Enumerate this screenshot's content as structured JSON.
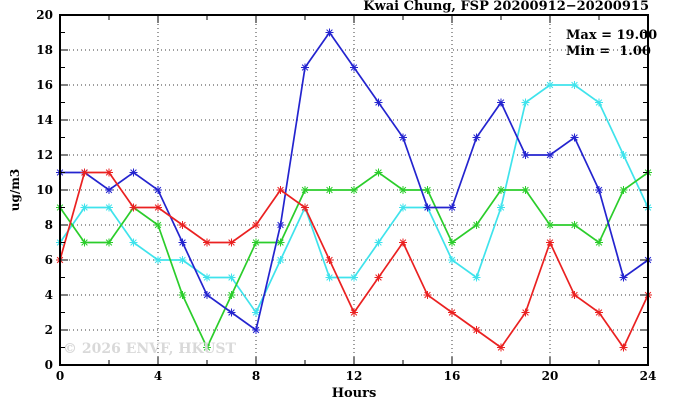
{
  "chart_data": {
    "type": "line",
    "title": "Kwai Chung, FSP 20200912−20200915",
    "xlabel": "Hours",
    "ylabel": "ug/m3",
    "xlim": [
      0,
      24
    ],
    "ylim": [
      0,
      20
    ],
    "x_major_ticks": [
      0,
      4,
      8,
      12,
      16,
      20,
      24
    ],
    "x_minor_step": 2,
    "y_major_ticks": [
      0,
      2,
      4,
      6,
      8,
      10,
      12,
      14,
      16,
      18,
      20
    ],
    "y_minor_step": 1,
    "grid": "dotted",
    "legend_position": "top-right-inside",
    "x": [
      0,
      1,
      2,
      3,
      4,
      5,
      6,
      7,
      8,
      9,
      10,
      11,
      12,
      13,
      14,
      15,
      16,
      17,
      18,
      19,
      20,
      21,
      22,
      23,
      24
    ],
    "series": [
      {
        "name": "cyan-line",
        "color": "#3fe3ec",
        "values": [
          7,
          9,
          9,
          7,
          6,
          6,
          5,
          5,
          3,
          6,
          9,
          5,
          5,
          7,
          9,
          9,
          6,
          5,
          9,
          15,
          16,
          16,
          15,
          12,
          9
        ]
      },
      {
        "name": "green-line",
        "color": "#2bcd2b",
        "values": [
          9,
          7,
          7,
          9,
          8,
          4,
          1,
          4,
          7,
          7,
          10,
          10,
          10,
          11,
          10,
          10,
          7,
          8,
          10,
          10,
          8,
          8,
          7,
          10,
          11
        ]
      },
      {
        "name": "blue-line",
        "color": "#2424cf",
        "values": [
          11,
          11,
          10,
          11,
          10,
          7,
          4,
          3,
          2,
          8,
          17,
          19,
          17,
          15,
          13,
          9,
          9,
          13,
          15,
          12,
          12,
          13,
          10,
          5,
          6
        ]
      },
      {
        "name": "red-line",
        "color": "#ea2121",
        "values": [
          6,
          11,
          11,
          9,
          9,
          8,
          7,
          7,
          8,
          10,
          9,
          6,
          3,
          5,
          7,
          4,
          3,
          2,
          1,
          3,
          7,
          4,
          3,
          1,
          4
        ]
      }
    ],
    "stats": {
      "max": 19.0,
      "min": 1.0
    }
  },
  "legend": {
    "max_label": "Max = 19.00",
    "min_label": "Min =  1.00"
  },
  "watermark": {
    "text": "© 2026 ENVF, HKUST"
  },
  "colors": {
    "border": "#000000",
    "grid": "#3c3c3c",
    "background": "#ffffff",
    "watermark": "#d9d9d9"
  }
}
